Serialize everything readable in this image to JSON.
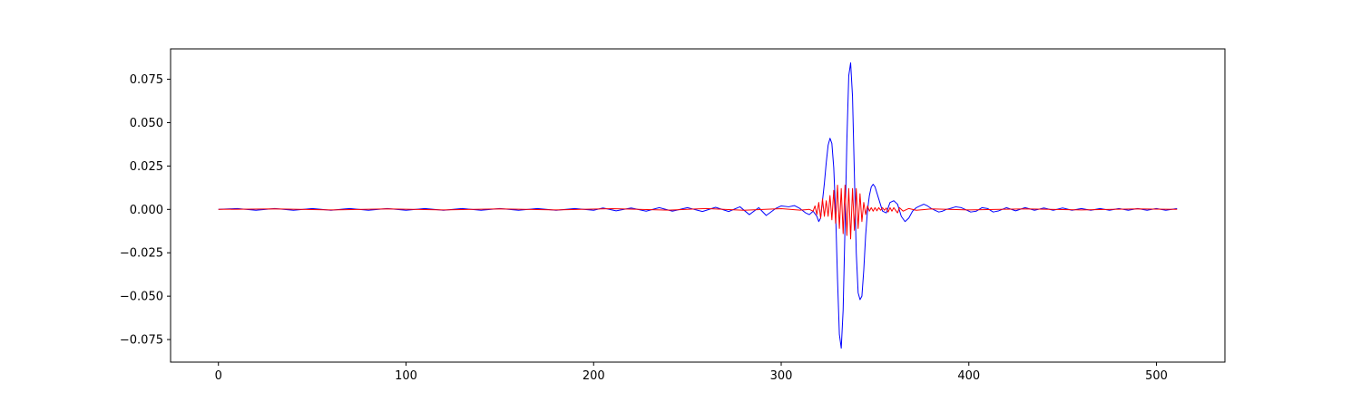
{
  "chart_data": {
    "type": "line",
    "title": "",
    "xlabel": "",
    "ylabel": "",
    "xlim": [
      -25.5,
      536.5
    ],
    "ylim": [
      -0.088,
      0.0925
    ],
    "grid": false,
    "x_ticks": [
      0,
      100,
      200,
      300,
      400,
      500
    ],
    "x_tick_labels": [
      "0",
      "100",
      "200",
      "300",
      "400",
      "500"
    ],
    "y_ticks": [
      0.075,
      0.05,
      0.025,
      0.0,
      -0.025,
      -0.05,
      -0.075
    ],
    "y_tick_labels": [
      "0.075",
      "0.050",
      "0.025",
      "0.000",
      "−0.025",
      "−0.050",
      "−0.075"
    ],
    "series": [
      {
        "name": "blue",
        "color": "#0000ff",
        "points": [
          [
            0,
            0.0
          ],
          [
            10,
            0.0005
          ],
          [
            20,
            -0.0005
          ],
          [
            30,
            0.0005
          ],
          [
            40,
            -0.0005
          ],
          [
            50,
            0.0005
          ],
          [
            60,
            -0.0005
          ],
          [
            70,
            0.0005
          ],
          [
            80,
            -0.0005
          ],
          [
            90,
            0.0005
          ],
          [
            100,
            -0.0005
          ],
          [
            110,
            0.0005
          ],
          [
            120,
            -0.0005
          ],
          [
            130,
            0.0005
          ],
          [
            140,
            -0.0005
          ],
          [
            150,
            0.0005
          ],
          [
            160,
            -0.0005
          ],
          [
            170,
            0.0005
          ],
          [
            180,
            -0.0005
          ],
          [
            190,
            0.0005
          ],
          [
            200,
            -0.0005
          ],
          [
            205,
            0.0008
          ],
          [
            212,
            -0.0008
          ],
          [
            220,
            0.0008
          ],
          [
            228,
            -0.001
          ],
          [
            235,
            0.001
          ],
          [
            242,
            -0.001
          ],
          [
            250,
            0.001
          ],
          [
            258,
            -0.0012
          ],
          [
            265,
            0.0012
          ],
          [
            272,
            -0.0012
          ],
          [
            278,
            0.0015
          ],
          [
            283,
            -0.003
          ],
          [
            288,
            0.001
          ],
          [
            292,
            -0.0035
          ],
          [
            297,
            0.0005
          ],
          [
            300,
            0.002
          ],
          [
            304,
            0.0015
          ],
          [
            307,
            0.0022
          ],
          [
            310,
            0.0005
          ],
          [
            313,
            -0.002
          ],
          [
            315,
            -0.003
          ],
          [
            317,
            -0.001
          ],
          [
            319,
            -0.004
          ],
          [
            320,
            -0.007
          ],
          [
            321,
            -0.005
          ],
          [
            322,
            0.005
          ],
          [
            323,
            0.015
          ],
          [
            324,
            0.027
          ],
          [
            325,
            0.037
          ],
          [
            326,
            0.041
          ],
          [
            327,
            0.038
          ],
          [
            328,
            0.024
          ],
          [
            329,
            -0.002
          ],
          [
            330,
            -0.04
          ],
          [
            331,
            -0.072
          ],
          [
            332,
            -0.08
          ],
          [
            333,
            -0.058
          ],
          [
            334,
            -0.01
          ],
          [
            335,
            0.04
          ],
          [
            336,
            0.077
          ],
          [
            337,
            0.0845
          ],
          [
            338,
            0.065
          ],
          [
            339,
            0.02
          ],
          [
            340,
            -0.025
          ],
          [
            341,
            -0.048
          ],
          [
            342,
            -0.052
          ],
          [
            343,
            -0.05
          ],
          [
            344,
            -0.035
          ],
          [
            345,
            -0.015
          ],
          [
            346,
            -0.0005
          ],
          [
            347,
            0.008
          ],
          [
            348,
            0.013
          ],
          [
            349,
            0.0145
          ],
          [
            350,
            0.013
          ],
          [
            352,
            0.006
          ],
          [
            354,
            -0.001
          ],
          [
            356,
            -0.002
          ],
          [
            358,
            0.004
          ],
          [
            360,
            0.005
          ],
          [
            362,
            0.003
          ],
          [
            364,
            -0.004
          ],
          [
            366,
            -0.007
          ],
          [
            368,
            -0.005
          ],
          [
            370,
            -0.001
          ],
          [
            372,
            0.001
          ],
          [
            374,
            0.002
          ],
          [
            376,
            0.003
          ],
          [
            378,
            0.002
          ],
          [
            380,
            0.0005
          ],
          [
            382,
            -0.0005
          ],
          [
            384,
            -0.0015
          ],
          [
            386,
            -0.001
          ],
          [
            388,
            0.0
          ],
          [
            390,
            0.0005
          ],
          [
            393,
            0.0015
          ],
          [
            396,
            0.001
          ],
          [
            398,
            0.0
          ],
          [
            401,
            -0.0015
          ],
          [
            404,
            -0.001
          ],
          [
            407,
            0.001
          ],
          [
            410,
            0.0005
          ],
          [
            413,
            -0.0015
          ],
          [
            416,
            -0.0008
          ],
          [
            420,
            0.001
          ],
          [
            425,
            -0.0008
          ],
          [
            430,
            0.001
          ],
          [
            435,
            -0.0005
          ],
          [
            440,
            0.0008
          ],
          [
            445,
            -0.0005
          ],
          [
            450,
            0.0008
          ],
          [
            455,
            -0.0005
          ],
          [
            460,
            0.0005
          ],
          [
            465,
            -0.0005
          ],
          [
            470,
            0.0005
          ],
          [
            475,
            -0.0005
          ],
          [
            480,
            0.0005
          ],
          [
            485,
            -0.0005
          ],
          [
            490,
            0.0005
          ],
          [
            495,
            -0.0005
          ],
          [
            500,
            0.0005
          ],
          [
            505,
            -0.0005
          ],
          [
            511,
            0.0005
          ]
        ]
      },
      {
        "name": "red",
        "color": "#ff0000",
        "points": [
          [
            0,
            0.0
          ],
          [
            30,
            0.0003
          ],
          [
            60,
            -0.0003
          ],
          [
            90,
            0.0003
          ],
          [
            120,
            -0.0003
          ],
          [
            150,
            0.0003
          ],
          [
            180,
            -0.0003
          ],
          [
            210,
            0.0004
          ],
          [
            240,
            -0.0004
          ],
          [
            260,
            0.0005
          ],
          [
            280,
            -0.0005
          ],
          [
            300,
            0.0004
          ],
          [
            310,
            -0.0004
          ],
          [
            315,
            0.0
          ],
          [
            317,
            -0.001
          ],
          [
            318,
            0.002
          ],
          [
            319,
            -0.003
          ],
          [
            320,
            0.004
          ],
          [
            321,
            -0.005
          ],
          [
            322,
            0.006
          ],
          [
            323,
            -0.004
          ],
          [
            324,
            0.005
          ],
          [
            325,
            -0.004
          ],
          [
            326,
            0.008
          ],
          [
            327,
            -0.006
          ],
          [
            328,
            0.011
          ],
          [
            329,
            -0.008
          ],
          [
            330,
            0.014
          ],
          [
            331,
            -0.011
          ],
          [
            332,
            0.012
          ],
          [
            333,
            -0.014
          ],
          [
            334,
            0.014
          ],
          [
            335,
            -0.015
          ],
          [
            336,
            0.012
          ],
          [
            337,
            -0.017
          ],
          [
            338,
            0.012
          ],
          [
            339,
            -0.012
          ],
          [
            340,
            0.012
          ],
          [
            341,
            -0.011
          ],
          [
            342,
            0.009
          ],
          [
            343,
            -0.007
          ],
          [
            344,
            0.004
          ],
          [
            345,
            -0.003
          ],
          [
            346,
            0.002
          ],
          [
            347,
            -0.001
          ],
          [
            348,
            0.001
          ],
          [
            349,
            -0.001
          ],
          [
            350,
            0.001
          ],
          [
            351,
            -0.0008
          ],
          [
            352,
            0.001
          ],
          [
            353,
            -0.0005
          ],
          [
            354,
            0.001
          ],
          [
            355,
            -0.0005
          ],
          [
            356,
            0.0008
          ],
          [
            357,
            -0.0015
          ],
          [
            358,
            0.001
          ],
          [
            359,
            -0.001
          ],
          [
            360,
            0.001
          ],
          [
            362,
            -0.002
          ],
          [
            363,
            0.001
          ],
          [
            365,
            -0.001
          ],
          [
            368,
            0.0005
          ],
          [
            372,
            -0.0005
          ],
          [
            380,
            0.0003
          ],
          [
            400,
            -0.0003
          ],
          [
            430,
            0.0003
          ],
          [
            460,
            -0.0003
          ],
          [
            490,
            0.0003
          ],
          [
            511,
            0.0
          ]
        ]
      }
    ]
  }
}
